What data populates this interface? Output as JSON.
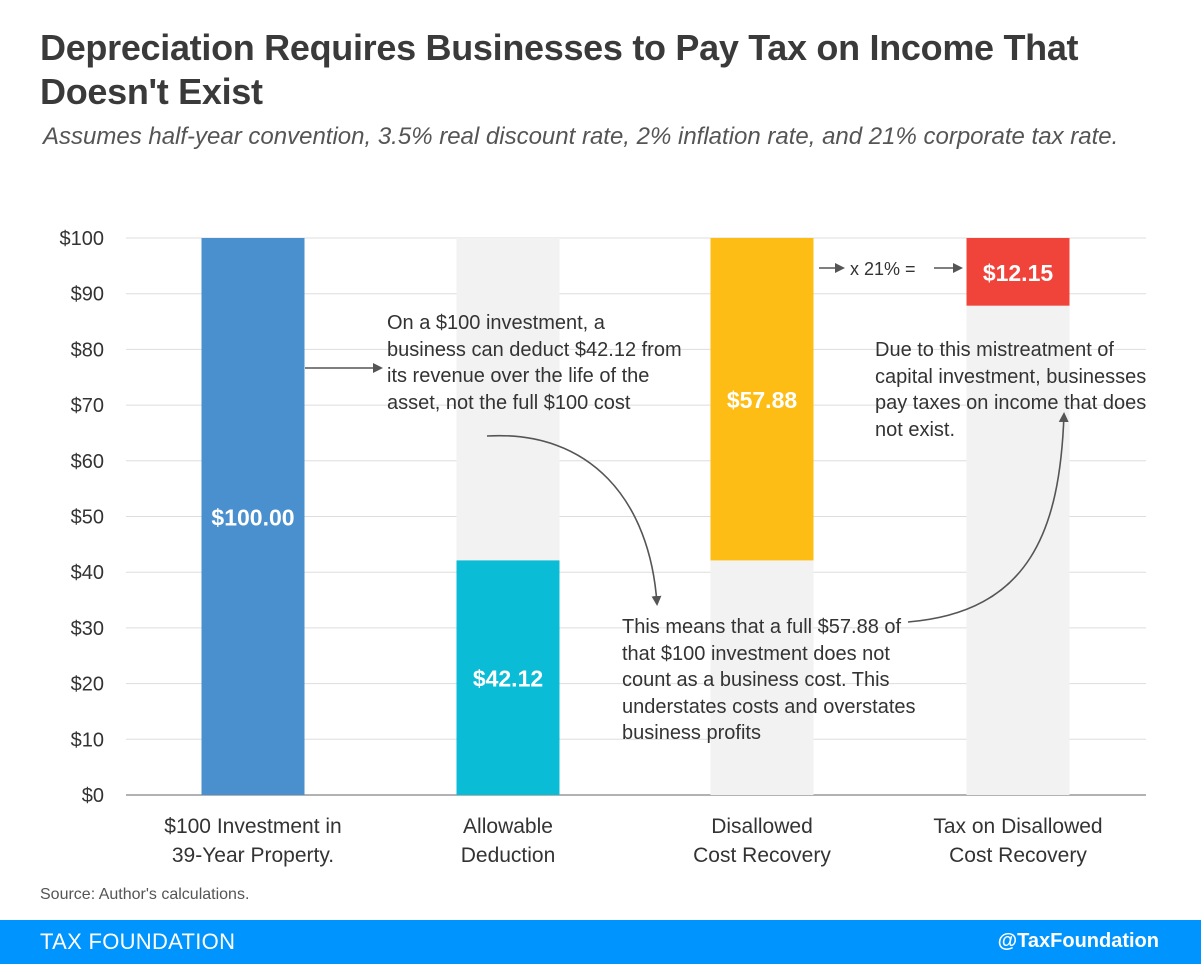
{
  "title": "Depreciation Requires Businesses to Pay Tax on Income That Doesn't Exist",
  "subtitle": "Assumes  half-year  convention,  3.5% real discount rate,  2% inflation rate, and 21% corporate tax rate.",
  "chart_data": {
    "type": "bar",
    "categories": [
      "$100 Investment in 39-Year Property.",
      "Allowable Deduction",
      "Disallowed Cost Recovery",
      "Tax on Disallowed Cost Recovery"
    ],
    "bars": [
      {
        "base": 0,
        "value": 100,
        "label": "$100.00",
        "color": "#4a8fce"
      },
      {
        "base": 0,
        "value": 42.12,
        "label": "$42.12",
        "color": "#0bbcd6"
      },
      {
        "base": 42.12,
        "value": 57.88,
        "label": "$57.88",
        "color": "#fdbd14"
      },
      {
        "base": 87.85,
        "value": 12.15,
        "label": "$12.15",
        "color": "#f0443a"
      }
    ],
    "background_color": "#f2f2f2",
    "y_ticks": [
      "$0",
      "$10",
      "$20",
      "$30",
      "$40",
      "$50",
      "$60",
      "$70",
      "$80",
      "$90",
      "$100"
    ],
    "ylim": [
      0,
      100
    ],
    "grid": true,
    "multiplier_label": "x 21% =",
    "annotations": [
      "On a $100 investment, a business can deduct $42.12 from its revenue over the life of the asset, not the full $100 cost",
      "This means that a full $57.88 of that $100 investment does not count as a business cost. This understates costs and overstates business profits",
      "Due to this mistreatment of capital investment, businesses pay taxes on income that does not exist."
    ]
  },
  "source": "Source: Author's calculations.",
  "footer": {
    "brand": "TAX FOUNDATION",
    "handle": "@TaxFoundation",
    "color": "#0094ff"
  }
}
